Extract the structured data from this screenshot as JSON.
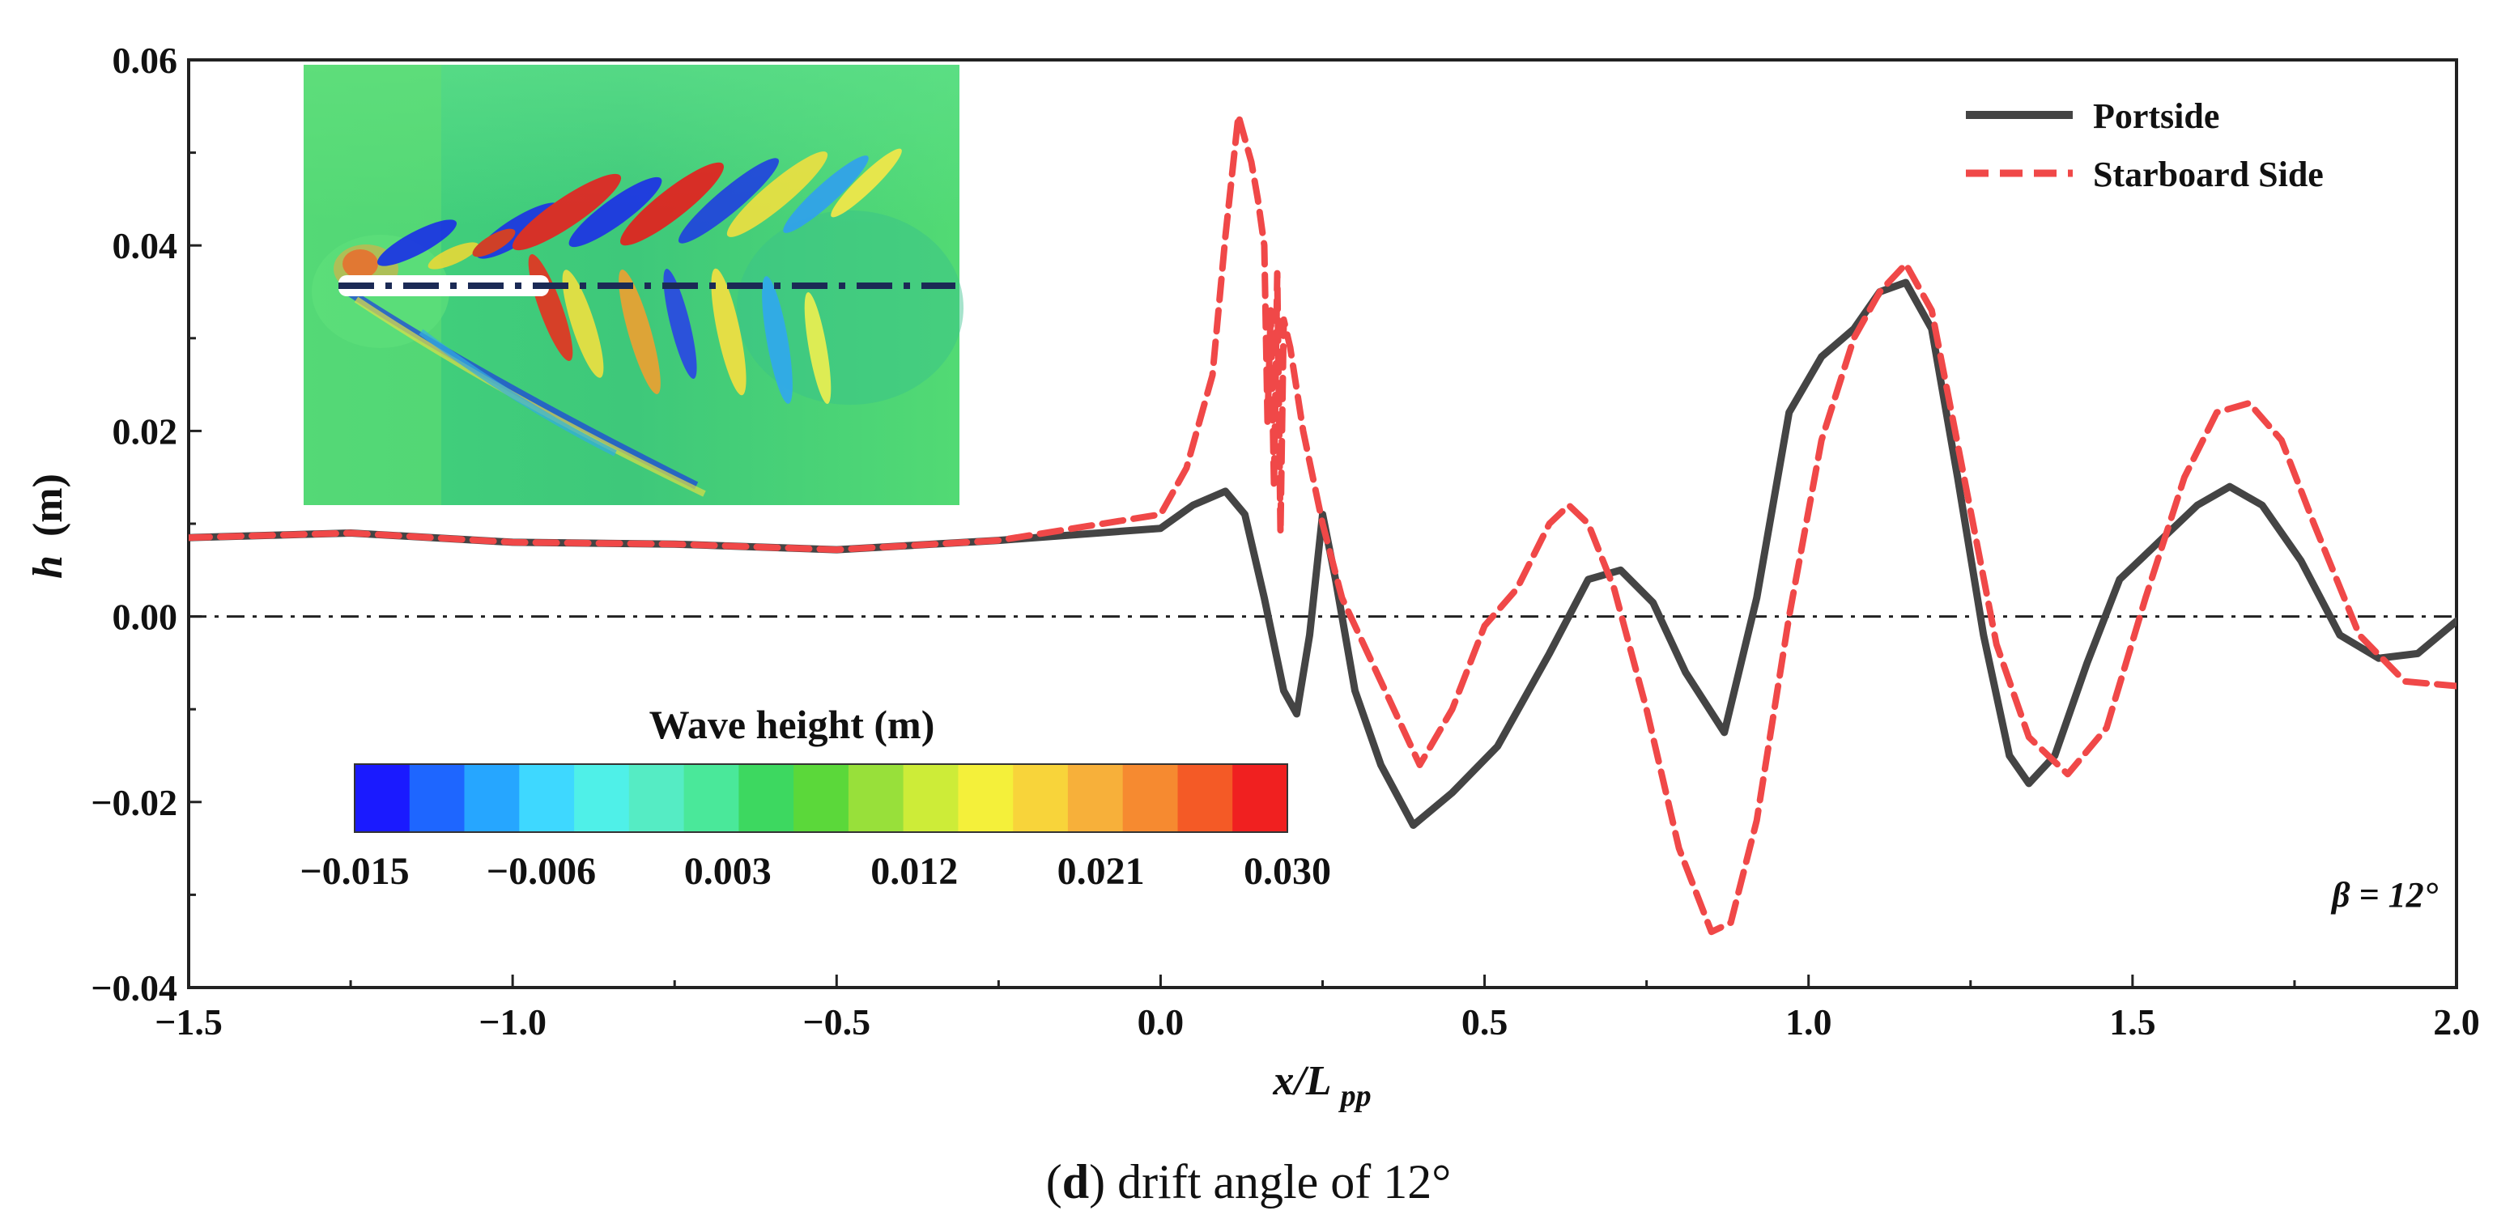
{
  "chart_data": {
    "type": "line",
    "title": "",
    "xlabel_main": "x/L",
    "xlabel_sub": "pp",
    "ylabel_main": "h",
    "ylabel_unit": "(m)",
    "xlim": [
      -1.5,
      2.0
    ],
    "ylim": [
      -0.04,
      0.06
    ],
    "xticks": [
      -1.5,
      -1.0,
      -0.5,
      0.0,
      0.5,
      1.0,
      1.5,
      2.0
    ],
    "xtick_labels": [
      "−1.5",
      "−1.0",
      "−0.5",
      "0.0",
      "0.5",
      "1.0",
      "1.5",
      "2.0"
    ],
    "yticks": [
      -0.04,
      -0.02,
      0.0,
      0.02,
      0.04,
      0.06
    ],
    "ytick_labels": [
      "−0.04",
      "−0.02",
      "0.00",
      "0.02",
      "0.04",
      "0.06"
    ],
    "reference_line_y": 0.0,
    "legend_position": "top-right",
    "annotation": "β = 12°",
    "series": [
      {
        "name": "Portside",
        "color": "#444444",
        "style": "solid",
        "x": [
          -1.5,
          -1.25,
          -1.0,
          -0.75,
          -0.5,
          -0.25,
          0.0,
          0.05,
          0.1,
          0.13,
          0.16,
          0.19,
          0.21,
          0.23,
          0.25,
          0.27,
          0.3,
          0.34,
          0.39,
          0.45,
          0.52,
          0.6,
          0.66,
          0.71,
          0.76,
          0.81,
          0.87,
          0.92,
          0.97,
          1.02,
          1.07,
          1.11,
          1.15,
          1.19,
          1.23,
          1.27,
          1.31,
          1.34,
          1.38,
          1.43,
          1.48,
          1.54,
          1.6,
          1.65,
          1.7,
          1.76,
          1.82,
          1.88,
          1.94,
          2.0
        ],
        "values": [
          0.0085,
          0.009,
          0.008,
          0.0078,
          0.0072,
          0.0082,
          0.0095,
          0.012,
          0.0135,
          0.011,
          0.002,
          -0.008,
          -0.0105,
          -0.002,
          0.011,
          0.004,
          -0.008,
          -0.016,
          -0.0225,
          -0.019,
          -0.014,
          -0.004,
          0.004,
          0.005,
          0.0015,
          -0.006,
          -0.0125,
          0.002,
          0.022,
          0.028,
          0.031,
          0.035,
          0.036,
          0.031,
          0.015,
          -0.002,
          -0.015,
          -0.018,
          -0.015,
          -0.005,
          0.004,
          0.008,
          0.012,
          0.014,
          0.012,
          0.006,
          -0.002,
          -0.0045,
          -0.004,
          -0.0005
        ]
      },
      {
        "name": "Starboard Side",
        "color": "#f04848",
        "style": "dashed",
        "x": [
          -1.5,
          -1.25,
          -1.0,
          -0.75,
          -0.5,
          -0.25,
          0.0,
          0.04,
          0.08,
          0.1,
          0.12,
          0.14,
          0.15,
          0.16,
          0.165,
          0.17,
          0.175,
          0.18,
          0.185,
          0.19,
          0.2,
          0.22,
          0.25,
          0.28,
          0.32,
          0.36,
          0.4,
          0.45,
          0.5,
          0.55,
          0.6,
          0.63,
          0.66,
          0.7,
          0.75,
          0.8,
          0.85,
          0.88,
          0.92,
          0.97,
          1.02,
          1.07,
          1.11,
          1.15,
          1.19,
          1.24,
          1.29,
          1.34,
          1.4,
          1.46,
          1.52,
          1.58,
          1.63,
          1.68,
          1.73,
          1.78,
          1.85,
          1.92,
          2.0
        ],
        "values": [
          0.0085,
          0.009,
          0.008,
          0.0078,
          0.0072,
          0.0082,
          0.011,
          0.016,
          0.026,
          0.041,
          0.054,
          0.049,
          0.045,
          0.04,
          0.021,
          0.033,
          0.014,
          0.037,
          0.009,
          0.032,
          0.029,
          0.02,
          0.01,
          0.002,
          -0.004,
          -0.01,
          -0.016,
          -0.01,
          -0.001,
          0.003,
          0.01,
          0.012,
          0.01,
          0.003,
          -0.01,
          -0.025,
          -0.034,
          -0.033,
          -0.022,
          0.0,
          0.019,
          0.03,
          0.035,
          0.038,
          0.033,
          0.015,
          -0.003,
          -0.013,
          -0.017,
          -0.012,
          0.002,
          0.015,
          0.022,
          0.023,
          0.019,
          0.01,
          -0.002,
          -0.007,
          -0.0075
        ]
      }
    ]
  },
  "colorbar": {
    "title": "Wave height (m)",
    "tick_labels": [
      "−0.015",
      "−0.006",
      "0.003",
      "0.012",
      "0.021",
      "0.030"
    ],
    "colors": [
      "#1a1aff",
      "#1e66ff",
      "#26a6ff",
      "#3ed8ff",
      "#4ff0e8",
      "#55ecc4",
      "#4ae89a",
      "#3dd860",
      "#5bd83a",
      "#98e03a",
      "#cdec38",
      "#f4f03a",
      "#f8d43a",
      "#f7b03a",
      "#f68a30",
      "#f45a26",
      "#f02020"
    ]
  },
  "inset": {
    "label": "wave-height-contour"
  },
  "caption": {
    "letter": "d",
    "text": " drift angle of 12°"
  }
}
